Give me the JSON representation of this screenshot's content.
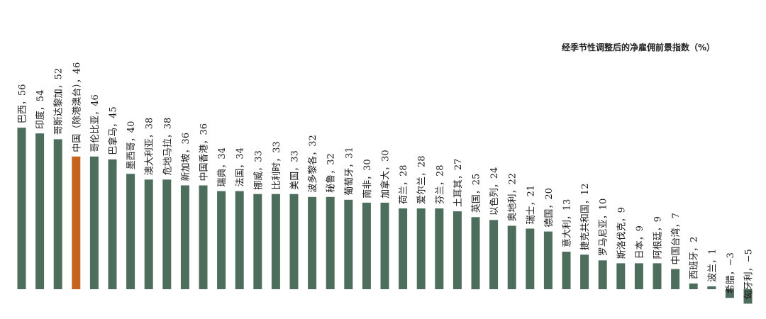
{
  "chart_data": {
    "type": "bar",
    "title": "经季节性调整后的净雇佣前景指数（%）",
    "xlabel": "",
    "ylabel": "",
    "ylim": [
      -5,
      56
    ],
    "grid": false,
    "legend": "none",
    "colors": {
      "default": "#4e6e5d",
      "highlight": "#c5641f"
    },
    "highlight_category": "中国（除港澳台）",
    "categories": [
      "巴西",
      "印度",
      "哥斯达黎加",
      "中国（除港澳台）",
      "哥伦比亚",
      "巴拿马",
      "墨西哥",
      "澳大利亚",
      "危地马拉",
      "新加坡",
      "中国香港",
      "瑞典",
      "法国",
      "挪威",
      "比利时",
      "美国",
      "波多黎各",
      "秘鲁",
      "葡萄牙",
      "南非",
      "加拿大",
      "荷兰",
      "爱尔兰",
      "芬兰",
      "土耳其",
      "英国",
      "以色列",
      "奥地利",
      "瑞士",
      "德国",
      "意大利",
      "捷克共和国",
      "罗马尼亚",
      "斯洛伐克",
      "日本",
      "阿根廷",
      "中国台湾",
      "西班牙",
      "波兰",
      "希腊",
      "匈牙利"
    ],
    "values": [
      56,
      54,
      52,
      46,
      46,
      45,
      40,
      38,
      38,
      36,
      36,
      34,
      34,
      33,
      33,
      33,
      32,
      32,
      31,
      30,
      30,
      28,
      28,
      28,
      27,
      25,
      24,
      22,
      21,
      20,
      13,
      12,
      10,
      9,
      9,
      9,
      7,
      2,
      1,
      -3,
      -5
    ],
    "data_labels": [
      "巴西，56",
      "印度，54",
      "哥斯达黎加，52",
      "中国（除港澳台），46",
      "哥伦比亚，46",
      "巴拿马，45",
      "墨西哥，40",
      "澳大利亚，38",
      "危地马拉，38",
      "新加坡，36",
      "中国香港，36",
      "瑞典，34",
      "法国，34",
      "挪威，33",
      "比利时，33",
      "美国，33",
      "波多黎各，32",
      "秘鲁，32",
      "葡萄牙，31",
      "南非，30",
      "加拿大，30",
      "荷兰，28",
      "爱尔兰，28",
      "芬兰，28",
      "土耳其，27",
      "英国，25",
      "以色列，24",
      "奥地利，22",
      "瑞士，21",
      "德国，20",
      "意大利，13",
      "捷克共和国，12",
      "罗马尼亚，10",
      "斯洛伐克，9",
      "日本，9",
      "阿根廷，9",
      "中国台湾，7",
      "西班牙，2",
      "波兰，1",
      "希腊，−3",
      "匈牙利，−5"
    ]
  }
}
